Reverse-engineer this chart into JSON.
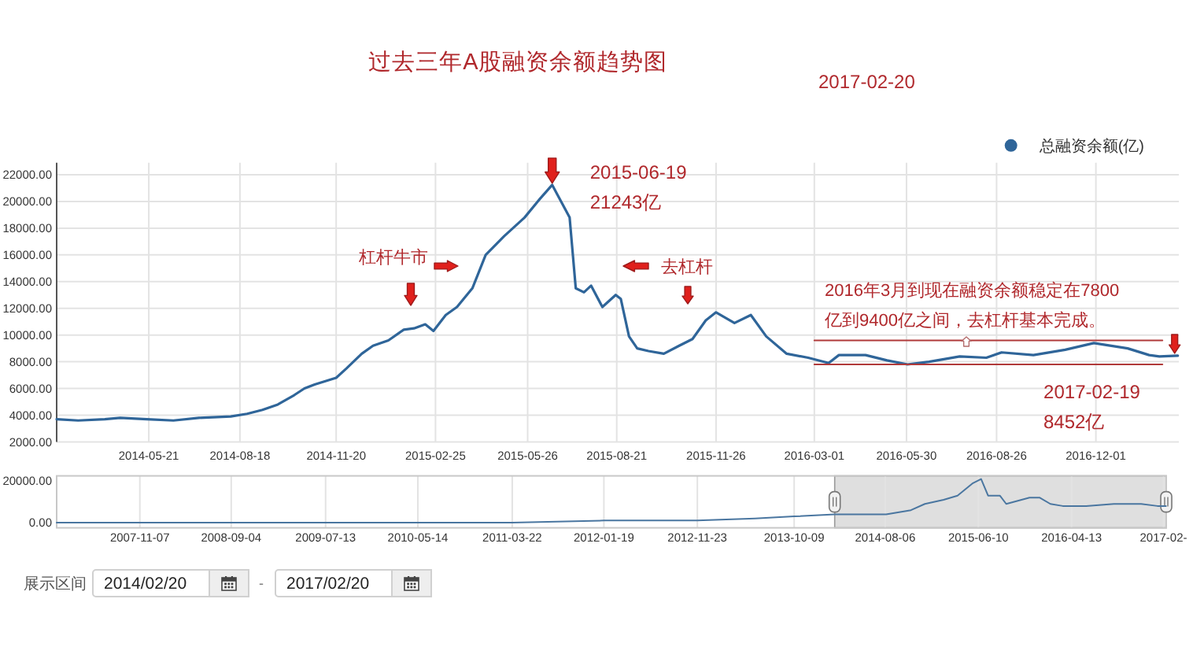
{
  "chart_data": [
    {
      "type": "line",
      "title": "过去三年A股融资余额趋势图",
      "annotations": [
        "2017-02-20",
        {
          "text": "2015-06-19",
          "x": "2015-06-19",
          "y": 21243
        },
        {
          "text": "21243亿",
          "x": "2015-06-19",
          "y": 21243
        },
        "杠杆牛市",
        "去杠杆",
        "2016年3月到现在融资余额稳定在7800亿到9400亿之间，去杠杆基本完成。",
        {
          "text": "2017-02-19",
          "x": "2017-02-19",
          "y": 8452
        },
        "8452亿"
      ],
      "x": [
        "2014-02-20",
        "2014-03-13",
        "2014-04-08",
        "2014-04-23",
        "2014-05-19",
        "2014-06-14",
        "2014-07-09",
        "2014-08-09",
        "2014-08-25",
        "2014-09-09",
        "2014-09-24",
        "2014-10-10",
        "2014-10-20",
        "2014-10-30",
        "2014-11-20",
        "2014-11-30",
        "2014-12-15",
        "2014-12-26",
        "2015-01-10",
        "2015-01-25",
        "2015-02-04",
        "2015-02-15",
        "2015-02-23",
        "2015-03-07",
        "2015-03-18",
        "2015-04-02",
        "2015-04-15",
        "2015-05-03",
        "2015-05-23",
        "2015-06-07",
        "2015-06-19",
        "2015-07-06",
        "2015-07-12",
        "2015-07-20",
        "2015-07-27",
        "2015-08-07",
        "2015-08-20",
        "2015-08-25",
        "2015-09-02",
        "2015-09-10",
        "2015-09-21",
        "2015-10-06",
        "2015-10-21",
        "2015-11-03",
        "2015-11-16",
        "2015-11-26",
        "2015-12-14",
        "2015-12-30",
        "2016-01-14",
        "2016-02-03",
        "2016-02-24",
        "2016-03-15",
        "2016-03-25",
        "2016-04-20",
        "2016-05-11",
        "2016-05-31",
        "2016-06-21",
        "2016-07-21",
        "2016-08-16",
        "2016-08-31",
        "2016-10-01",
        "2016-11-01",
        "2016-11-29",
        "2017-01-01",
        "2017-01-22",
        "2017-02-01",
        "2017-02-19"
      ],
      "series": [
        {
          "name": "总融资余额(亿)",
          "color": "#2f6599",
          "values": [
            3700,
            3600,
            3700,
            3800,
            3700,
            3600,
            3800,
            3900,
            4100,
            4400,
            4800,
            5500,
            6000,
            6300,
            6800,
            7500,
            8600,
            9200,
            9600,
            10400,
            10500,
            10800,
            10300,
            11500,
            12100,
            13500,
            16000,
            17400,
            18800,
            20200,
            21243,
            18800,
            13500,
            13200,
            13700,
            12100,
            13000,
            12700,
            9900,
            9000,
            8800,
            8600,
            9200,
            9700,
            11100,
            11700,
            10900,
            11500,
            9900,
            8600,
            8300,
            7900,
            8500,
            8500,
            8100,
            7800,
            8000,
            8400,
            8300,
            8700,
            8500,
            8900,
            9400,
            9000,
            8500,
            8400,
            8452
          ]
        },
        {
          "type": "line",
          "color": "#b03a3a",
          "x": [
            "2016-03-01",
            "2017-02-04"
          ],
          "values": [
            9600,
            9600
          ]
        },
        {
          "type": "line",
          "color": "#b03a3a",
          "x": [
            "2016-03-01",
            "2017-02-04"
          ],
          "values": [
            7800,
            7800
          ]
        }
      ],
      "xlim": [
        "2014-02-20",
        "2017-02-20"
      ],
      "ylim": [
        2000,
        22900
      ],
      "xticks": [
        "2014-05-21",
        "2014-08-18",
        "2014-11-20",
        "2015-02-25",
        "2015-05-26",
        "2015-08-21",
        "2015-11-26",
        "2016-03-01",
        "2016-05-30",
        "2016-08-26",
        "2016-12-01"
      ],
      "yticks": [
        {
          "value": 2000,
          "label": "2000.00"
        },
        {
          "value": 4000,
          "label": "4000.00"
        },
        {
          "value": 6000,
          "label": "6000.00"
        },
        {
          "value": 8000,
          "label": "8000.00"
        },
        {
          "value": 10000,
          "label": "10000.00"
        },
        {
          "value": 12000,
          "label": "12000.00"
        },
        {
          "value": 14000,
          "label": "14000.00"
        },
        {
          "value": 16000,
          "label": "16000.00"
        },
        {
          "value": 18000,
          "label": "18000.00"
        },
        {
          "value": 20000,
          "label": "20000.00"
        },
        {
          "value": 22000,
          "label": "22000.00"
        }
      ],
      "grid": true,
      "legend": "top right"
    },
    {
      "type": "line",
      "x": [
        "2007-02-05",
        "2010-03-31",
        "2011-03-22",
        "2012-01-19",
        "2012-11-23",
        "2013-06-01",
        "2013-10-09",
        "2014-02-20",
        "2014-05-19",
        "2014-08-09",
        "2014-10-30",
        "2014-12-15",
        "2015-02-15",
        "2015-04-02",
        "2015-05-23",
        "2015-06-19",
        "2015-07-12",
        "2015-08-20",
        "2015-09-10",
        "2015-11-26",
        "2015-12-30",
        "2016-02-03",
        "2016-03-15",
        "2016-05-31",
        "2016-08-31",
        "2016-11-29",
        "2017-01-22",
        "2017-02-19"
      ],
      "series": [
        {
          "color": "#4a76a0",
          "values": [
            0,
            0,
            0,
            1000,
            1000,
            2000,
            3000,
            4000,
            4000,
            4000,
            6000,
            9000,
            11000,
            13000,
            19000,
            21000,
            13000,
            13000,
            9000,
            12000,
            12000,
            9000,
            8000,
            8000,
            9000,
            9000,
            8000,
            8000
          ]
        }
      ],
      "xlim": [
        "2007-02-05",
        "2017-02-20"
      ],
      "ylim": [
        -2500,
        22500
      ],
      "xticks": [
        "2007-11-07",
        "2008-09-04",
        "2009-07-13",
        "2010-05-14",
        "2011-03-22",
        "2012-01-19",
        "2012-11-23",
        "2013-10-09",
        "2014-08-06",
        "2015-06-10",
        "2016-04-13",
        {
          "value": "2017-02-11",
          "label": "2017-02-"
        }
      ],
      "yticks": [
        {
          "value": 0,
          "label": "0.00"
        },
        {
          "value": 20000,
          "label": "20000.00"
        }
      ],
      "grid": "x",
      "bands": [
        {
          "axis": "x",
          "from": "2014-02-20",
          "to": "2017-02-20",
          "color": "#d9d9d9"
        }
      ]
    },
    {
      "type": "other",
      "annotations": [
        "展示区间",
        "2014/02/20",
        "-",
        "2017/02/20"
      ]
    }
  ]
}
